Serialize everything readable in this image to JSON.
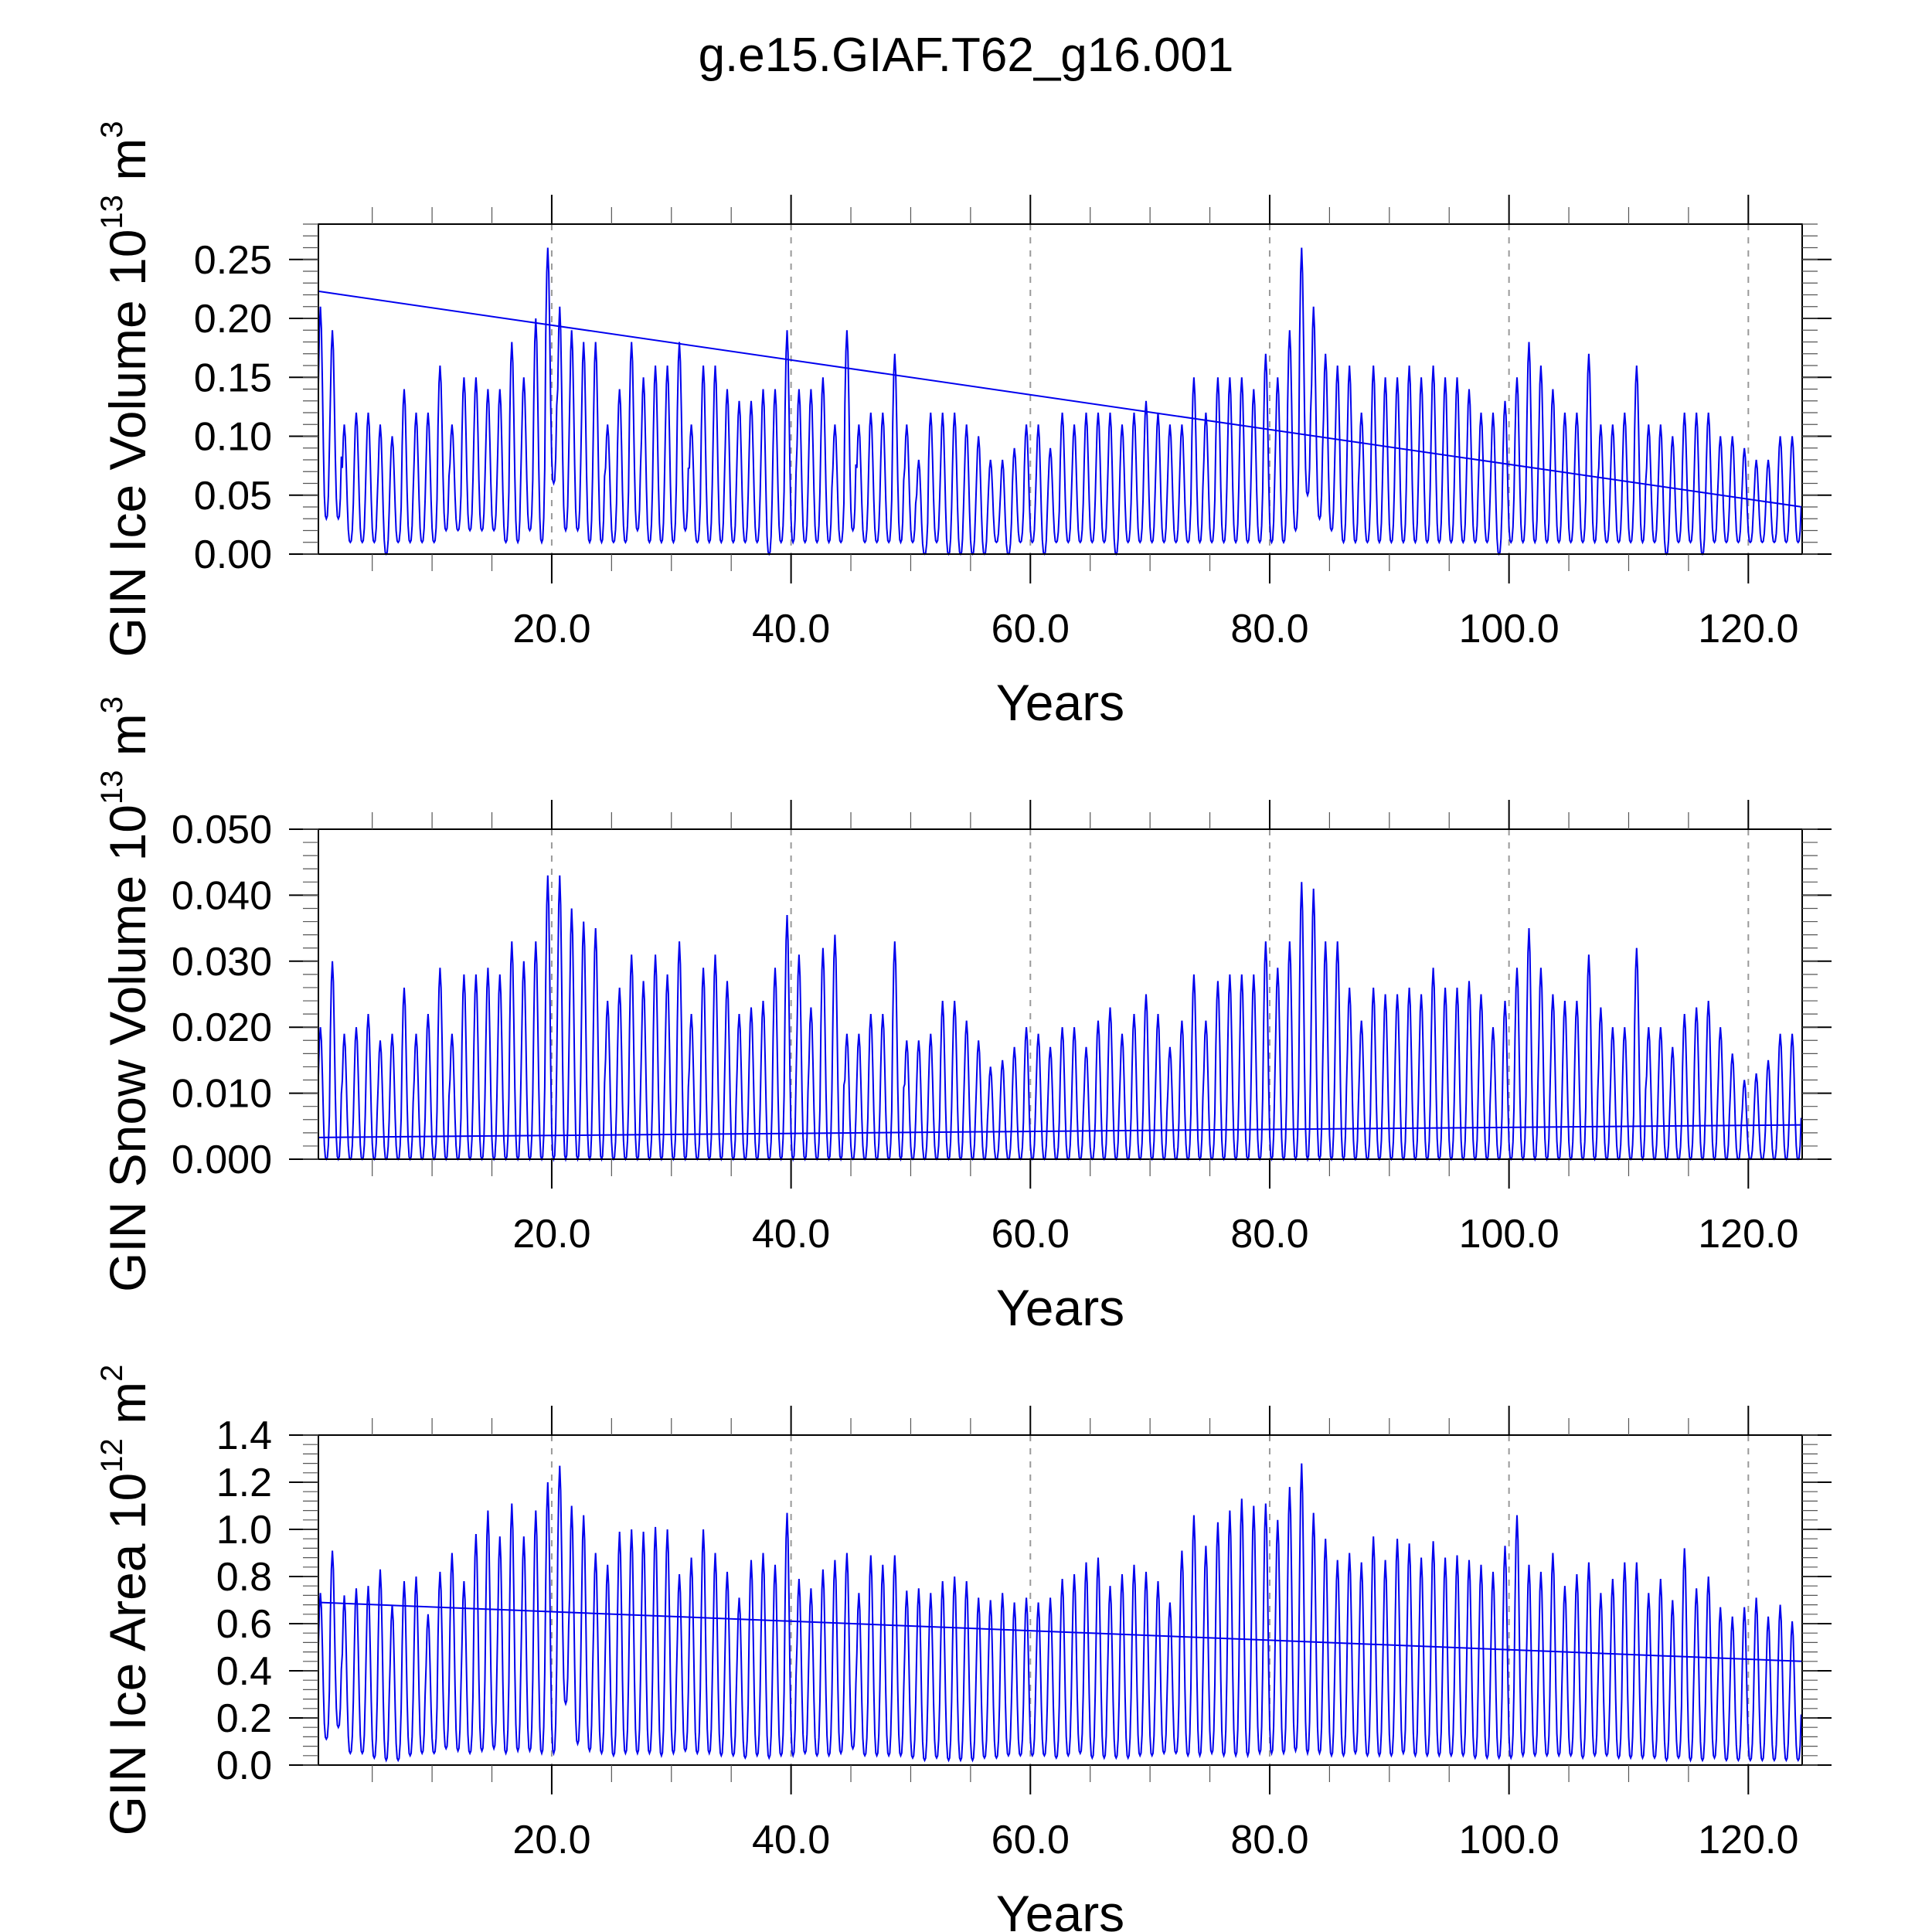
{
  "title": "g.e15.GIAF.T62_g16.001",
  "colors": {
    "series": "#0000ee",
    "trend": "#0000ee",
    "axis": "#000000",
    "grid": "#999999"
  },
  "chart_data": [
    {
      "type": "line",
      "ylabel_main": "GIN Ice Volume 10",
      "ylabel_exp": "13",
      "ylabel_unit": " m",
      "ylabel_unit_exp": "3",
      "xlabel": "Years",
      "xlim": [
        0.5,
        124.5
      ],
      "ylim": [
        0.0,
        0.28
      ],
      "xticks": [
        20,
        40,
        60,
        80,
        100,
        120
      ],
      "xtick_labels": [
        "20.0",
        "40.0",
        "60.0",
        "80.0",
        "100.0",
        "120.0"
      ],
      "yticks": [
        0.0,
        0.05,
        0.1,
        0.15,
        0.2,
        0.25
      ],
      "ytick_labels": [
        "0.00",
        "0.05",
        "0.10",
        "0.15",
        "0.20",
        "0.25"
      ],
      "grid": "vertical dashed at major x ticks",
      "series": [
        {
          "name": "GIN Ice Volume monthly",
          "months_per_year": 12,
          "annual_max": [
            0.21,
            0.19,
            0.11,
            0.12,
            0.12,
            0.11,
            0.1,
            0.14,
            0.12,
            0.12,
            0.16,
            0.11,
            0.15,
            0.15,
            0.14,
            0.14,
            0.18,
            0.15,
            0.2,
            0.26,
            0.21,
            0.19,
            0.18,
            0.18,
            0.11,
            0.14,
            0.18,
            0.15,
            0.16,
            0.16,
            0.18,
            0.11,
            0.16,
            0.16,
            0.14,
            0.13,
            0.13,
            0.14,
            0.14,
            0.19,
            0.14,
            0.14,
            0.15,
            0.11,
            0.19,
            0.11,
            0.12,
            0.12,
            0.17,
            0.11,
            0.08,
            0.12,
            0.12,
            0.12,
            0.11,
            0.1,
            0.08,
            0.08,
            0.09,
            0.11,
            0.11,
            0.09,
            0.12,
            0.11,
            0.12,
            0.12,
            0.12,
            0.11,
            0.12,
            0.13,
            0.12,
            0.11,
            0.11,
            0.15,
            0.12,
            0.15,
            0.15,
            0.15,
            0.14,
            0.17,
            0.15,
            0.19,
            0.26,
            0.21,
            0.17,
            0.16,
            0.16,
            0.12,
            0.16,
            0.15,
            0.15,
            0.16,
            0.15,
            0.16,
            0.15,
            0.15,
            0.14,
            0.12,
            0.12,
            0.13,
            0.15,
            0.18,
            0.16,
            0.14,
            0.12,
            0.12,
            0.17,
            0.11,
            0.11,
            0.12,
            0.16,
            0.11,
            0.11,
            0.1,
            0.12,
            0.12,
            0.12,
            0.1,
            0.1,
            0.09,
            0.08,
            0.08,
            0.1,
            0.1
          ],
          "annual_min": [
            0.03,
            0.03,
            0.01,
            0.01,
            0.01,
            0.0,
            0.01,
            0.01,
            0.01,
            0.01,
            0.02,
            0.02,
            0.02,
            0.02,
            0.02,
            0.01,
            0.01,
            0.02,
            0.01,
            0.06,
            0.02,
            0.02,
            0.01,
            0.01,
            0.01,
            0.01,
            0.02,
            0.01,
            0.01,
            0.01,
            0.02,
            0.01,
            0.01,
            0.01,
            0.01,
            0.01,
            0.01,
            0.0,
            0.01,
            0.01,
            0.01,
            0.01,
            0.01,
            0.01,
            0.02,
            0.01,
            0.01,
            0.01,
            0.01,
            0.01,
            0.0,
            0.01,
            0.0,
            0.0,
            0.0,
            0.0,
            0.01,
            0.0,
            0.01,
            0.01,
            0.0,
            0.01,
            0.01,
            0.01,
            0.01,
            0.01,
            0.0,
            0.01,
            0.01,
            0.01,
            0.01,
            0.01,
            0.01,
            0.01,
            0.01,
            0.01,
            0.01,
            0.01,
            0.01,
            0.01,
            0.01,
            0.02,
            0.05,
            0.03,
            0.02,
            0.01,
            0.01,
            0.01,
            0.01,
            0.01,
            0.01,
            0.01,
            0.01,
            0.01,
            0.01,
            0.01,
            0.01,
            0.01,
            0.0,
            0.01,
            0.01,
            0.01,
            0.01,
            0.01,
            0.01,
            0.01,
            0.01,
            0.01,
            0.01,
            0.01,
            0.01,
            0.01,
            0.0,
            0.01,
            0.01,
            0.0,
            0.01,
            0.01,
            0.01,
            0.01,
            0.01,
            0.01,
            0.01,
            0.01
          ]
        }
      ],
      "trend": {
        "x": [
          0.5,
          124.5
        ],
        "y": [
          0.223,
          0.04
        ]
      }
    },
    {
      "type": "line",
      "ylabel_main": "GIN Snow Volume 10",
      "ylabel_exp": "13",
      "ylabel_unit": " m",
      "ylabel_unit_exp": "3",
      "xlabel": "Years",
      "xlim": [
        0.5,
        124.5
      ],
      "ylim": [
        0.0,
        0.05
      ],
      "xticks": [
        20,
        40,
        60,
        80,
        100,
        120
      ],
      "xtick_labels": [
        "20.0",
        "40.0",
        "60.0",
        "80.0",
        "100.0",
        "120.0"
      ],
      "yticks": [
        0.0,
        0.01,
        0.02,
        0.03,
        0.04,
        0.05
      ],
      "ytick_labels": [
        "0.000",
        "0.010",
        "0.020",
        "0.030",
        "0.040",
        "0.050"
      ],
      "grid": "vertical dashed at major x ticks",
      "series": [
        {
          "name": "GIN Snow Volume monthly",
          "months_per_year": 12,
          "annual_max": [
            0.02,
            0.03,
            0.019,
            0.02,
            0.022,
            0.018,
            0.019,
            0.026,
            0.019,
            0.022,
            0.029,
            0.019,
            0.028,
            0.028,
            0.029,
            0.028,
            0.033,
            0.03,
            0.033,
            0.043,
            0.043,
            0.038,
            0.036,
            0.035,
            0.024,
            0.026,
            0.031,
            0.027,
            0.031,
            0.028,
            0.033,
            0.022,
            0.029,
            0.031,
            0.027,
            0.022,
            0.023,
            0.024,
            0.029,
            0.037,
            0.031,
            0.023,
            0.032,
            0.034,
            0.019,
            0.019,
            0.022,
            0.022,
            0.033,
            0.018,
            0.018,
            0.019,
            0.024,
            0.024,
            0.021,
            0.018,
            0.014,
            0.015,
            0.017,
            0.02,
            0.019,
            0.017,
            0.02,
            0.02,
            0.017,
            0.021,
            0.023,
            0.019,
            0.022,
            0.025,
            0.022,
            0.017,
            0.021,
            0.028,
            0.021,
            0.027,
            0.028,
            0.028,
            0.028,
            0.033,
            0.029,
            0.033,
            0.042,
            0.041,
            0.033,
            0.033,
            0.026,
            0.021,
            0.026,
            0.025,
            0.025,
            0.026,
            0.025,
            0.029,
            0.026,
            0.026,
            0.027,
            0.025,
            0.02,
            0.024,
            0.029,
            0.035,
            0.029,
            0.025,
            0.024,
            0.024,
            0.031,
            0.023,
            0.02,
            0.02,
            0.032,
            0.02,
            0.02,
            0.017,
            0.022,
            0.023,
            0.024,
            0.02,
            0.016,
            0.012,
            0.013,
            0.015,
            0.019,
            0.019
          ],
          "annual_min": [
            0.0,
            0.0,
            0.0,
            0.0,
            0.0,
            0.0,
            0.0,
            0.0,
            0.0,
            0.0,
            0.0,
            0.0,
            0.0,
            0.0,
            0.0,
            0.0,
            0.0,
            0.0,
            0.0,
            0.0,
            0.0,
            0.0,
            0.0,
            0.0,
            0.0,
            0.0,
            0.0,
            0.0,
            0.0,
            0.0,
            0.0,
            0.0,
            0.0,
            0.0,
            0.0,
            0.0,
            0.0,
            0.0,
            0.0,
            0.0,
            0.0,
            0.0,
            0.0,
            0.0,
            0.0,
            0.0,
            0.0,
            0.0,
            0.0,
            0.0,
            0.0,
            0.0,
            0.0,
            0.0,
            0.0,
            0.0,
            0.0,
            0.0,
            0.0,
            0.0,
            0.0,
            0.0,
            0.0,
            0.0,
            0.0,
            0.0,
            0.0,
            0.0,
            0.0,
            0.0,
            0.0,
            0.0,
            0.0,
            0.0,
            0.0,
            0.0,
            0.0,
            0.0,
            0.0,
            0.0,
            0.0,
            0.0,
            0.0,
            0.0,
            0.0,
            0.0,
            0.0,
            0.0,
            0.0,
            0.0,
            0.0,
            0.0,
            0.0,
            0.0,
            0.0,
            0.0,
            0.0,
            0.0,
            0.0,
            0.0,
            0.0,
            0.0,
            0.0,
            0.0,
            0.0,
            0.0,
            0.0,
            0.0,
            0.0,
            0.0,
            0.0,
            0.0,
            0.0,
            0.0,
            0.0,
            0.0,
            0.0,
            0.0,
            0.0,
            0.0,
            0.0,
            0.0,
            0.0,
            0.0
          ]
        }
      ],
      "trend": {
        "x": [
          0.5,
          124.5
        ],
        "y": [
          0.0033,
          0.0052
        ]
      }
    },
    {
      "type": "line",
      "ylabel_main": "GIN Ice Area 10",
      "ylabel_exp": "12",
      "ylabel_unit": " m",
      "ylabel_unit_exp": "2",
      "xlabel": "Years",
      "xlim": [
        0.5,
        124.5
      ],
      "ylim": [
        0.0,
        1.4
      ],
      "xticks": [
        20,
        40,
        60,
        80,
        100,
        120
      ],
      "xtick_labels": [
        "20.0",
        "40.0",
        "60.0",
        "80.0",
        "100.0",
        "120.0"
      ],
      "yticks": [
        0.0,
        0.2,
        0.4,
        0.6,
        0.8,
        1.0,
        1.2,
        1.4
      ],
      "ytick_labels": [
        "0.0",
        "0.2",
        "0.4",
        "0.6",
        "0.8",
        "1.0",
        "1.2",
        "1.4"
      ],
      "grid": "vertical dashed at major x ticks",
      "series": [
        {
          "name": "GIN Ice Area monthly",
          "months_per_year": 12,
          "annual_max": [
            0.73,
            0.91,
            0.72,
            0.75,
            0.76,
            0.83,
            0.68,
            0.78,
            0.8,
            0.64,
            0.82,
            0.9,
            0.78,
            0.98,
            1.08,
            0.97,
            1.11,
            0.97,
            1.08,
            1.2,
            1.27,
            1.1,
            1.06,
            0.9,
            0.85,
            0.99,
            1.0,
            0.99,
            1.01,
            1.0,
            0.81,
            0.88,
            1.0,
            0.9,
            0.82,
            0.71,
            0.87,
            0.9,
            0.85,
            1.07,
            0.79,
            0.75,
            0.83,
            0.87,
            0.9,
            0.73,
            0.89,
            0.85,
            0.89,
            0.74,
            0.75,
            0.73,
            0.78,
            0.8,
            0.78,
            0.71,
            0.7,
            0.73,
            0.69,
            0.71,
            0.69,
            0.71,
            0.79,
            0.81,
            0.86,
            0.88,
            0.76,
            0.81,
            0.85,
            0.82,
            0.78,
            0.69,
            0.91,
            1.06,
            0.93,
            1.03,
            1.08,
            1.13,
            1.1,
            1.11,
            1.04,
            1.18,
            1.28,
            1.07,
            0.96,
            0.87,
            0.9,
            0.86,
            0.97,
            0.87,
            0.96,
            0.94,
            0.88,
            0.95,
            0.88,
            0.89,
            0.87,
            0.85,
            0.82,
            0.93,
            1.06,
            0.85,
            0.82,
            0.9,
            0.76,
            0.81,
            0.86,
            0.73,
            0.79,
            0.86,
            0.86,
            0.73,
            0.79,
            0.7,
            0.92,
            0.75,
            0.8,
            0.67,
            0.63,
            0.67,
            0.71,
            0.63,
            0.68,
            0.61
          ],
          "annual_min": [
            0.11,
            0.16,
            0.05,
            0.05,
            0.03,
            0.02,
            0.02,
            0.04,
            0.05,
            0.05,
            0.07,
            0.06,
            0.05,
            0.06,
            0.07,
            0.05,
            0.06,
            0.06,
            0.05,
            0.05,
            0.26,
            0.09,
            0.06,
            0.05,
            0.04,
            0.05,
            0.05,
            0.05,
            0.04,
            0.05,
            0.06,
            0.05,
            0.05,
            0.04,
            0.04,
            0.03,
            0.04,
            0.03,
            0.04,
            0.04,
            0.05,
            0.04,
            0.04,
            0.05,
            0.07,
            0.04,
            0.04,
            0.04,
            0.04,
            0.03,
            0.02,
            0.03,
            0.02,
            0.02,
            0.02,
            0.03,
            0.03,
            0.04,
            0.04,
            0.04,
            0.04,
            0.03,
            0.04,
            0.05,
            0.03,
            0.03,
            0.03,
            0.03,
            0.04,
            0.04,
            0.05,
            0.05,
            0.04,
            0.04,
            0.05,
            0.04,
            0.04,
            0.04,
            0.05,
            0.05,
            0.05,
            0.06,
            0.05,
            0.05,
            0.04,
            0.04,
            0.05,
            0.04,
            0.04,
            0.04,
            0.05,
            0.04,
            0.04,
            0.04,
            0.04,
            0.04,
            0.03,
            0.03,
            0.03,
            0.03,
            0.04,
            0.04,
            0.04,
            0.04,
            0.04,
            0.03,
            0.04,
            0.04,
            0.03,
            0.03,
            0.03,
            0.03,
            0.02,
            0.03,
            0.02,
            0.02,
            0.03,
            0.02,
            0.02,
            0.02,
            0.02,
            0.02,
            0.02,
            0.02
          ]
        }
      ],
      "trend": {
        "x": [
          0.5,
          124.5
        ],
        "y": [
          0.69,
          0.44
        ]
      }
    }
  ]
}
